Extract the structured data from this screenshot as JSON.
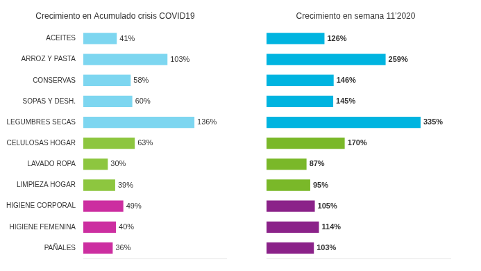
{
  "chart_data": [
    {
      "type": "bar",
      "orientation": "horizontal",
      "title": "Crecimiento en Acumulado crisis COVID19",
      "categories": [
        "ACEITES",
        "ARROZ Y PASTA",
        "CONSERVAS",
        "SOPAS Y DESH.",
        "LEGUMBRES SECAS",
        "CELULOSAS HOGAR",
        "LAVADO ROPA",
        "LIMPIEZA HOGAR",
        "HIGIENE CORPORAL",
        "HIGIENE FEMENINA",
        "PAÑALES"
      ],
      "values": [
        41,
        103,
        58,
        60,
        136,
        63,
        30,
        39,
        49,
        40,
        36
      ],
      "value_labels": [
        "41%",
        "103%",
        "58%",
        "60%",
        "136%",
        "63%",
        "30%",
        "39%",
        "49%",
        "40%",
        "36%"
      ],
      "colors": [
        "#7dd6f0",
        "#7dd6f0",
        "#7dd6f0",
        "#7dd6f0",
        "#7dd6f0",
        "#8dc63f",
        "#8dc63f",
        "#8dc63f",
        "#cc2ea0",
        "#cc2ea0",
        "#cc2ea0"
      ],
      "xlim": [
        0,
        175
      ],
      "data_labels": true,
      "tick_labels": "y",
      "grid": false
    },
    {
      "type": "bar",
      "orientation": "horizontal",
      "title": "Crecimiento en semana 11’2020",
      "categories": [
        "ACEITES",
        "ARROZ Y PASTA",
        "CONSERVAS",
        "SOPAS Y DESH.",
        "LEGUMBRES SECAS",
        "CELULOSAS HOGAR",
        "LAVADO ROPA",
        "LIMPIEZA HOGAR",
        "HIGIENE CORPORAL",
        "HIGIENE FEMENINA",
        "PAÑALES"
      ],
      "values": [
        126,
        259,
        146,
        145,
        335,
        170,
        87,
        95,
        105,
        114,
        103
      ],
      "value_labels": [
        "126%",
        "259%",
        "146%",
        "145%",
        "335%",
        "170%",
        "87%",
        "95%",
        "105%",
        "114%",
        "103%"
      ],
      "colors": [
        "#00b4e0",
        "#00b4e0",
        "#00b4e0",
        "#00b4e0",
        "#00b4e0",
        "#7ab829",
        "#7ab829",
        "#7ab829",
        "#8b2289",
        "#8b2289",
        "#8b2289"
      ],
      "xlim": [
        0,
        400
      ],
      "data_labels": true,
      "tick_labels": false,
      "grid": false
    }
  ]
}
